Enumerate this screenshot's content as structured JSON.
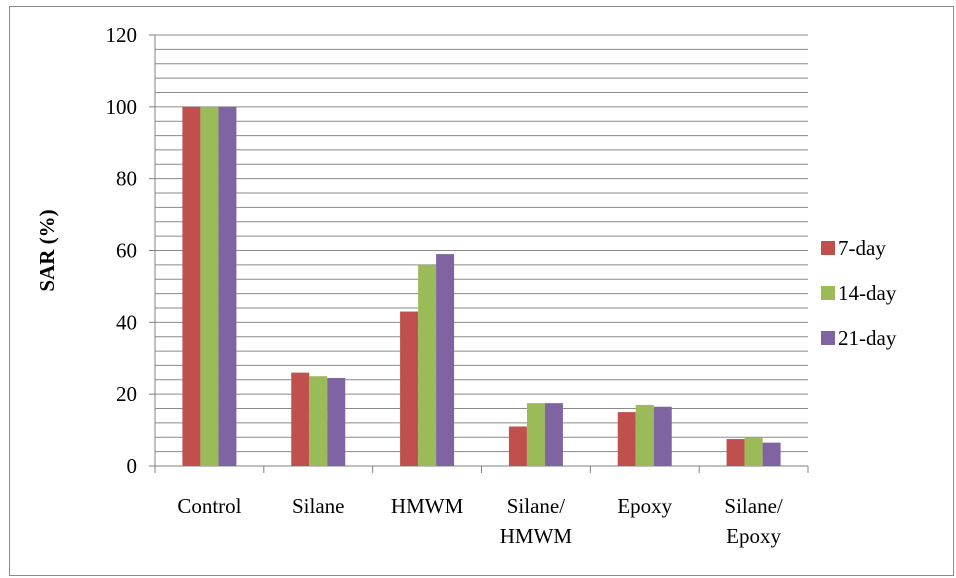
{
  "chart_data": {
    "type": "bar",
    "title": "",
    "xlabel": "",
    "ylabel": "SAR (%)",
    "ylim": [
      0,
      120
    ],
    "yticks": [
      0,
      20,
      40,
      60,
      80,
      100,
      120
    ],
    "grid": true,
    "legend_position": "right",
    "categories": [
      [
        "Control"
      ],
      [
        "Silane"
      ],
      [
        "HMWM"
      ],
      [
        "Silane/",
        "HMWM"
      ],
      [
        "Epoxy"
      ],
      [
        "Silane/",
        "Epoxy"
      ]
    ],
    "series": [
      {
        "name": "7-day",
        "color": "#c0504d",
        "values": [
          100,
          26,
          43,
          11,
          15,
          7.5
        ]
      },
      {
        "name": "14-day",
        "color": "#9bbb59",
        "values": [
          100,
          25,
          56,
          17.5,
          17,
          8
        ]
      },
      {
        "name": "21-day",
        "color": "#8064a2",
        "values": [
          100,
          24.5,
          59,
          17.5,
          16.5,
          6.5
        ]
      }
    ]
  }
}
